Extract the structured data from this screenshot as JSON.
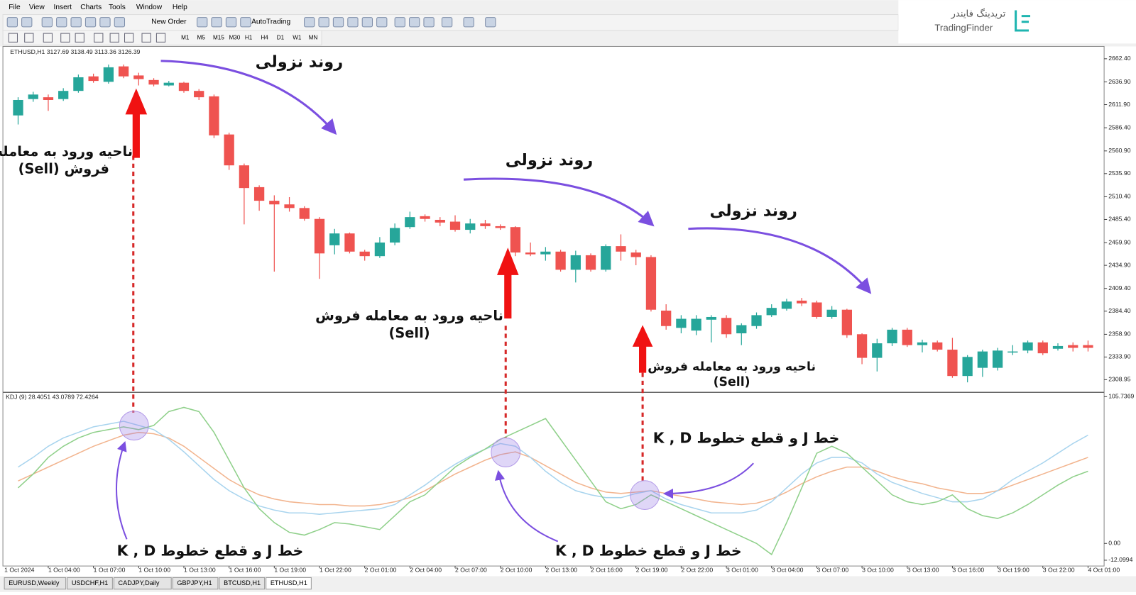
{
  "menu": [
    "File",
    "View",
    "Insert",
    "Charts",
    "Tools",
    "Window",
    "Help"
  ],
  "toolbar": {
    "new_order": "New Order",
    "auto_trading": "AutoTrading",
    "timeframes": [
      "M1",
      "M5",
      "M15",
      "M30",
      "H1",
      "H4",
      "D1",
      "W1",
      "MN"
    ]
  },
  "logo": {
    "name_fa": "تریدینگ فایندر",
    "name_en": "TradingFinder"
  },
  "chart_data": [
    {
      "type": "candlestick",
      "title": "ETHUSD,H1 3127.69 3138.49 3113.36 3126.39",
      "x_start_label": "1 Oct 2024",
      "categories": [
        null,
        null,
        "1 Oct 04:00",
        null,
        null,
        "1 Oct 07:00",
        null,
        null,
        "1 Oct 10:00",
        null,
        null,
        "1 Oct 13:00",
        null,
        null,
        "1 Oct 16:00",
        null,
        null,
        "1 Oct 19:00",
        null,
        null,
        "1 Oct 22:00",
        null,
        null,
        "2 Oct 01:00",
        null,
        null,
        "2 Oct 04:00",
        null,
        null,
        "2 Oct 07:00",
        null,
        null,
        "2 Oct 10:00",
        null,
        null,
        "2 Oct 13:00",
        null,
        null,
        "2 Oct 16:00",
        null,
        null,
        "2 Oct 19:00",
        null,
        null,
        "2 Oct 22:00",
        null,
        null,
        "3 Oct 01:00",
        null,
        null,
        "3 Oct 04:00",
        null,
        null,
        "3 Oct 07:00",
        null,
        null,
        "3 Oct 10:00",
        null,
        null,
        "3 Oct 13:00",
        null,
        null,
        "3 Oct 16:00",
        null,
        null,
        "3 Oct 19:00",
        null,
        null,
        "3 Oct 22:00",
        null,
        null,
        "4 Oct 01:00"
      ],
      "open": [
        2600,
        2618,
        2620,
        2618,
        2627,
        2643,
        2637,
        2654,
        2644,
        2639,
        2633,
        2636,
        2627,
        2621,
        2579,
        2545,
        2521,
        2506,
        2502,
        2498,
        2486,
        2457,
        2470,
        2450,
        2445,
        2460,
        2477,
        2489,
        2485,
        2483,
        2474,
        2481,
        2478,
        2477,
        2449,
        2447,
        2450,
        2430,
        2446,
        2430,
        2456,
        2449,
        2444,
        2385,
        2366,
        2363,
        2375,
        2377,
        2360,
        2368,
        2380,
        2387,
        2396,
        2394,
        2378,
        2386,
        2359,
        2333,
        2349,
        2364,
        2347,
        2350,
        2342,
        2313,
        2322,
        2322,
        2339,
        2341,
        2350,
        2343,
        2347,
        2347
      ],
      "high": [
        2620,
        2626,
        2623,
        2630,
        2645,
        2646,
        2656,
        2656,
        2647,
        2641,
        2638,
        2637,
        2629,
        2623,
        2581,
        2547,
        2523,
        2512,
        2510,
        2500,
        2488,
        2475,
        2471,
        2452,
        2466,
        2481,
        2494,
        2491,
        2488,
        2490,
        2486,
        2485,
        2480,
        2478,
        2460,
        2455,
        2452,
        2451,
        2448,
        2458,
        2469,
        2452,
        2446,
        2392,
        2380,
        2380,
        2380,
        2380,
        2371,
        2383,
        2392,
        2398,
        2399,
        2396,
        2390,
        2387,
        2360,
        2354,
        2366,
        2366,
        2353,
        2352,
        2355,
        2336,
        2342,
        2344,
        2347,
        2352,
        2352,
        2349,
        2350,
        2352
      ],
      "low": [
        2590,
        2615,
        2605,
        2616,
        2625,
        2636,
        2635,
        2641,
        2633,
        2632,
        2632,
        2625,
        2617,
        2575,
        2540,
        2480,
        2495,
        2428,
        2494,
        2484,
        2420,
        2447,
        2448,
        2440,
        2443,
        2457,
        2475,
        2483,
        2478,
        2472,
        2470,
        2475,
        2474,
        2445,
        2445,
        2440,
        2428,
        2416,
        2428,
        2428,
        2440,
        2435,
        2384,
        2364,
        2360,
        2358,
        2350,
        2355,
        2347,
        2365,
        2378,
        2385,
        2390,
        2376,
        2376,
        2355,
        2326,
        2318,
        2346,
        2345,
        2339,
        2340,
        2311,
        2306,
        2312,
        2319,
        2336,
        2338,
        2336,
        2341,
        2340,
        2340
      ],
      "close": [
        2617,
        2623,
        2617,
        2627,
        2642,
        2638,
        2653,
        2643,
        2640,
        2634,
        2636,
        2627,
        2620,
        2578,
        2545,
        2520,
        2506,
        2502,
        2498,
        2486,
        2448,
        2470,
        2450,
        2445,
        2460,
        2476,
        2488,
        2486,
        2482,
        2474,
        2481,
        2478,
        2476,
        2449,
        2447,
        2450,
        2430,
        2446,
        2430,
        2456,
        2450,
        2444,
        2386,
        2368,
        2376,
        2376,
        2378,
        2359,
        2369,
        2380,
        2388,
        2395,
        2393,
        2378,
        2386,
        2358,
        2333,
        2349,
        2364,
        2347,
        2350,
        2342,
        2313,
        2334,
        2340,
        2341,
        2340,
        2350,
        2338,
        2346,
        2344,
        2344
      ],
      "up_color": "#26a69a",
      "down_color": "#ef5350",
      "ylim": [
        2295.8,
        2674.4
      ],
      "yticks": [
        {
          "value": 2662.4,
          "label": "2662.40"
        },
        {
          "value": 2636.9,
          "label": "2636.90"
        },
        {
          "value": 2611.9,
          "label": "2611.90"
        },
        {
          "value": 2586.4,
          "label": "2586.40"
        },
        {
          "value": 2560.9,
          "label": "2560.90"
        },
        {
          "value": 2535.9,
          "label": "2535.90"
        },
        {
          "value": 2510.4,
          "label": "2510.40"
        },
        {
          "value": 2485.4,
          "label": "2485.40"
        },
        {
          "value": 2459.9,
          "label": "2459.90"
        },
        {
          "value": 2434.9,
          "label": "2434.90"
        },
        {
          "value": 2409.4,
          "label": "2409.40"
        },
        {
          "value": 2384.4,
          "label": "2384.40"
        },
        {
          "value": 2358.9,
          "label": "2358.90"
        },
        {
          "value": 2333.9,
          "label": "2333.90"
        },
        2308.95
      ]
    },
    {
      "type": "line",
      "title": "KDJ (9) 28.4051 43.0789 72.4264",
      "ylim": [
        -12.0994,
        105.7369
      ],
      "yticks": [
        105.7369,
        {
          "value": 0,
          "label": "0.00"
        },
        -12.0994
      ],
      "series": [
        {
          "color": "#f2b48e",
          "values": [
            45,
            50,
            55,
            60,
            65,
            70,
            74,
            78,
            80,
            79,
            76,
            70,
            62,
            54,
            46,
            40,
            35,
            32,
            30,
            29,
            28,
            28,
            27,
            27,
            28,
            30,
            33,
            38,
            44,
            50,
            55,
            60,
            64,
            66,
            62,
            56,
            50,
            44,
            40,
            37,
            36,
            37,
            38,
            36,
            34,
            32,
            30,
            29,
            28,
            29,
            32,
            37,
            43,
            48,
            52,
            55,
            55,
            52,
            48,
            45,
            43,
            40,
            38,
            36,
            36,
            38,
            42,
            46,
            50,
            54,
            58,
            62
          ]
        },
        {
          "color": "#a8d4ee",
          "values": [
            55,
            62,
            70,
            76,
            80,
            84,
            86,
            88,
            85,
            82,
            75,
            66,
            56,
            46,
            38,
            32,
            27,
            24,
            22,
            22,
            21,
            22,
            23,
            24,
            25,
            28,
            35,
            42,
            50,
            57,
            63,
            68,
            72,
            70,
            62,
            52,
            44,
            38,
            35,
            33,
            33,
            36,
            38,
            32,
            28,
            25,
            22,
            22,
            22,
            24,
            30,
            40,
            50,
            58,
            62,
            62,
            58,
            50,
            44,
            40,
            36,
            33,
            30,
            30,
            32,
            38,
            46,
            52,
            58,
            65,
            72,
            78
          ]
        },
        {
          "color": "#8fd08a",
          "values": [
            40,
            50,
            62,
            70,
            76,
            80,
            82,
            84,
            82,
            85,
            95,
            98,
            95,
            80,
            60,
            40,
            25,
            15,
            8,
            6,
            10,
            15,
            14,
            12,
            10,
            20,
            30,
            35,
            45,
            55,
            62,
            68,
            75,
            80,
            85,
            90,
            75,
            60,
            45,
            30,
            25,
            28,
            35,
            30,
            25,
            20,
            15,
            10,
            5,
            0,
            -8,
            15,
            40,
            65,
            70,
            65,
            55,
            45,
            35,
            30,
            28,
            30,
            35,
            25,
            20,
            18,
            22,
            28,
            35,
            42,
            48,
            52
          ]
        }
      ]
    }
  ],
  "annotations": {
    "trend": [
      "روند نزولی",
      "روند نزولی",
      "روند نزولی"
    ],
    "sell_entry": [
      [
        "ناحیه ورود به معامله",
        "فروش (Sell)"
      ],
      [
        "ناحیه ورود به معامله فروش",
        "(Sell)"
      ],
      [
        "ناحیه ورود به معامله فروش",
        "(Sell)"
      ]
    ],
    "cross": [
      "خط J و قطع خطوط K , D",
      "خط J و قطع خطوط K , D",
      "خط J و قطع خطوط K , D"
    ]
  },
  "tabs": [
    "EURUSD,Weekly",
    "USDCHF,H1",
    "CADJPY,Daily",
    "GBPJPY,H1",
    "BTCUSD,H1",
    "ETHUSD,H1"
  ]
}
